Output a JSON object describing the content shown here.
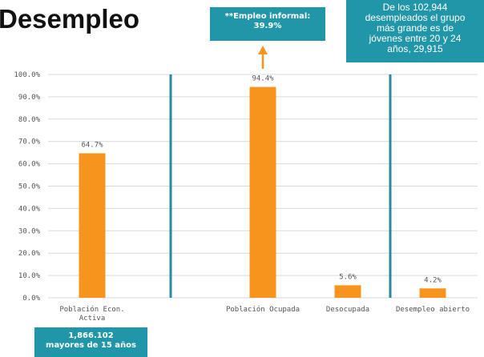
{
  "title": "Desempleo",
  "callouts": {
    "informal": {
      "lines": [
        "**Empleo informal:",
        "39.9%"
      ]
    },
    "youth": {
      "lines": [
        "De los 102,944",
        "desempleados el grupo",
        "más grande es de",
        "jóvenes entre 20 y 24",
        "años, 29,915"
      ]
    },
    "total": {
      "lines": [
        "1,866.102",
        "mayores de 15 años"
      ]
    }
  },
  "colors": {
    "bar": "#f7941d",
    "divider": "#2a8aa2",
    "grid": "#d9d9d9",
    "callout_bg": "#2196a8",
    "arrow": "#f7941d"
  },
  "chart_data": {
    "type": "bar",
    "categories": [
      [
        "Población Econ.",
        "Activa"
      ],
      [
        "Población Ocupada"
      ],
      [
        "Desocupada"
      ],
      [
        "Desempleo abierto"
      ]
    ],
    "values": [
      64.7,
      94.4,
      5.6,
      4.2
    ],
    "data_labels": [
      "64.7%",
      "94.4%",
      "5.6%",
      "4.2%"
    ],
    "ylim": [
      0,
      100
    ],
    "yticks": [
      "0.0%",
      "10.0%",
      "20.0%",
      "30.0%",
      "40.0%",
      "50.0%",
      "60.0%",
      "70.0%",
      "80.0%",
      "90.0%",
      "100.0%"
    ],
    "grid": true,
    "dividers_after_category": [
      0,
      2
    ]
  }
}
